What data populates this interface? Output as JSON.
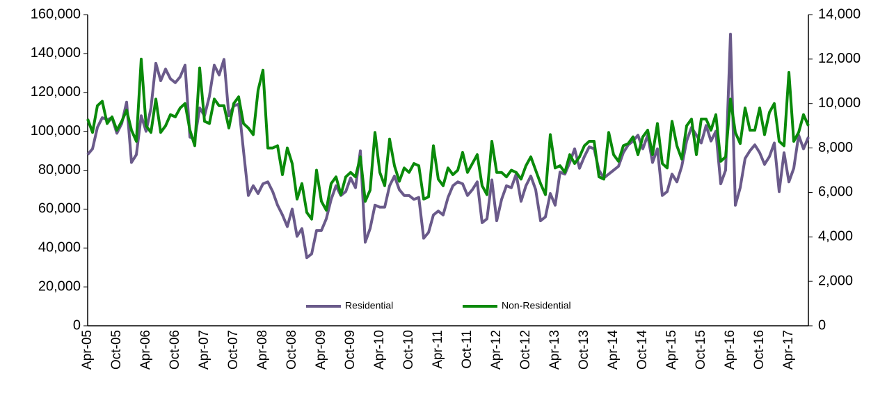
{
  "chart_data": {
    "type": "line",
    "categories": [
      "Apr-05",
      null,
      null,
      null,
      null,
      null,
      "Oct-05",
      null,
      null,
      null,
      null,
      null,
      "Apr-06",
      null,
      null,
      null,
      null,
      null,
      "Oct-06",
      null,
      null,
      null,
      null,
      null,
      "Apr-07",
      null,
      null,
      null,
      null,
      null,
      "Oct-07",
      null,
      null,
      null,
      null,
      null,
      "Apr-08",
      null,
      null,
      null,
      null,
      null,
      "Oct-08",
      null,
      null,
      null,
      null,
      null,
      "Apr-09",
      null,
      null,
      null,
      null,
      null,
      "Oct-09",
      null,
      null,
      null,
      null,
      null,
      "Apr-10",
      null,
      null,
      null,
      null,
      null,
      "Oct-10",
      null,
      null,
      null,
      null,
      null,
      "Apr-11",
      null,
      null,
      null,
      null,
      null,
      "Oct-11",
      null,
      null,
      null,
      null,
      null,
      "Apr-12",
      null,
      null,
      null,
      null,
      null,
      "Oct-12",
      null,
      null,
      null,
      null,
      null,
      "Apr-13",
      null,
      null,
      null,
      null,
      null,
      "Oct-13",
      null,
      null,
      null,
      null,
      null,
      "Apr-14",
      null,
      null,
      null,
      null,
      null,
      "Oct-14",
      null,
      null,
      null,
      null,
      null,
      "Apr-15",
      null,
      null,
      null,
      null,
      null,
      "Oct-15",
      null,
      null,
      null,
      null,
      null,
      "Apr-16",
      null,
      null,
      null,
      null,
      null,
      "Oct-16",
      null,
      null,
      null,
      null,
      null,
      "Apr-17",
      null,
      null,
      null,
      null
    ],
    "series": [
      {
        "name": "Residential",
        "color": "#6a5a8a",
        "values": [
          88000,
          91000,
          102000,
          107000,
          106000,
          107000,
          99000,
          104000,
          115000,
          84000,
          88000,
          108000,
          100000,
          112000,
          135000,
          126000,
          132000,
          127000,
          125000,
          128000,
          134000,
          97000,
          96000,
          112000,
          108000,
          118000,
          134000,
          129000,
          137000,
          108000,
          113000,
          114000,
          90000,
          67000,
          72000,
          68000,
          73000,
          74000,
          69000,
          62000,
          57000,
          51000,
          60000,
          46000,
          50000,
          35000,
          37000,
          49000,
          49000,
          55000,
          65000,
          72000,
          67000,
          69000,
          76000,
          71000,
          90000,
          43000,
          50000,
          62000,
          61000,
          61000,
          72000,
          77000,
          70000,
          67000,
          67000,
          65000,
          66000,
          45000,
          48000,
          57000,
          59000,
          57000,
          66000,
          72000,
          74000,
          73000,
          67000,
          70000,
          74000,
          53000,
          55000,
          75000,
          54000,
          65000,
          72000,
          71000,
          78000,
          64000,
          72000,
          77000,
          70000,
          54000,
          56000,
          68000,
          62000,
          79000,
          78000,
          84000,
          91000,
          81000,
          87000,
          92000,
          91000,
          80000,
          76000,
          78000,
          80000,
          82000,
          89000,
          93000,
          95000,
          98000,
          91000,
          98000,
          84000,
          91000,
          67000,
          69000,
          78000,
          74000,
          82000,
          95000,
          102000,
          98000,
          94000,
          103000,
          95000,
          100000,
          73000,
          80000,
          150000,
          62000,
          71000,
          86000,
          90000,
          93000,
          89000,
          83000,
          87000,
          94000,
          69000,
          89000,
          74000,
          81000,
          98000,
          91000,
          97000
        ]
      },
      {
        "name": "Non-Residential",
        "color": "#0a8a0a",
        "axis": "y2",
        "values": [
          9300,
          8700,
          9900,
          10100,
          9100,
          9400,
          8800,
          9200,
          9700,
          8800,
          8300,
          12000,
          9000,
          8700,
          10200,
          8700,
          9000,
          9500,
          9400,
          9800,
          10000,
          8800,
          8100,
          11600,
          9200,
          9100,
          10200,
          9900,
          9900,
          8900,
          10000,
          10300,
          9100,
          8900,
          8600,
          10600,
          11500,
          8000,
          8000,
          8100,
          6800,
          8000,
          7300,
          5700,
          6400,
          5100,
          4800,
          7000,
          5600,
          5200,
          6400,
          6700,
          5900,
          6700,
          6900,
          6700,
          7600,
          5600,
          6100,
          8700,
          6900,
          6300,
          8400,
          7200,
          6500,
          7100,
          6900,
          7300,
          7200,
          5700,
          5800,
          8100,
          6600,
          6300,
          7100,
          6800,
          7000,
          7800,
          6900,
          7300,
          7700,
          6300,
          5900,
          8300,
          6900,
          6900,
          6700,
          7000,
          6900,
          6600,
          7200,
          7600,
          7000,
          6400,
          5900,
          8600,
          7100,
          7200,
          6900,
          7700,
          7300,
          7600,
          8100,
          8300,
          8300,
          6700,
          6600,
          8700,
          7700,
          7400,
          8100,
          8200,
          8500,
          7700,
          8500,
          8800,
          7700,
          9100,
          7300,
          7100,
          9200,
          8100,
          7500,
          9000,
          9300,
          7700,
          9300,
          9300,
          8800,
          9500,
          7400,
          7600,
          10200,
          8700,
          8200,
          9800,
          8800,
          8800,
          9800,
          8600,
          9600,
          10000,
          8300,
          8100,
          11400,
          8300,
          8700,
          9500,
          9000
        ]
      }
    ],
    "ylim": [
      0,
      160000
    ],
    "yticks": [
      0,
      {
        "value": 20000,
        "label": "20,000"
      },
      {
        "value": 40000,
        "label": "40,000"
      },
      {
        "value": 60000,
        "label": "60,000"
      },
      {
        "value": 80000,
        "label": "80,000"
      },
      {
        "value": 100000,
        "label": "100,000"
      },
      {
        "value": 120000,
        "label": "120,000"
      },
      {
        "value": 140000,
        "label": "140,000"
      },
      {
        "value": 160000,
        "label": "160,000"
      }
    ],
    "y2lim": [
      0,
      14000
    ],
    "y2ticks": [
      0,
      {
        "value": 2000,
        "label": "2,000"
      },
      {
        "value": 4000,
        "label": "4,000"
      },
      {
        "value": 6000,
        "label": "6,000"
      },
      {
        "value": 8000,
        "label": "8,000"
      },
      {
        "value": 10000,
        "label": "10,000"
      },
      {
        "value": 12000,
        "label": "12,000"
      },
      {
        "value": 14000,
        "label": "14,000"
      }
    ],
    "grid": false,
    "legend": "bottom"
  }
}
